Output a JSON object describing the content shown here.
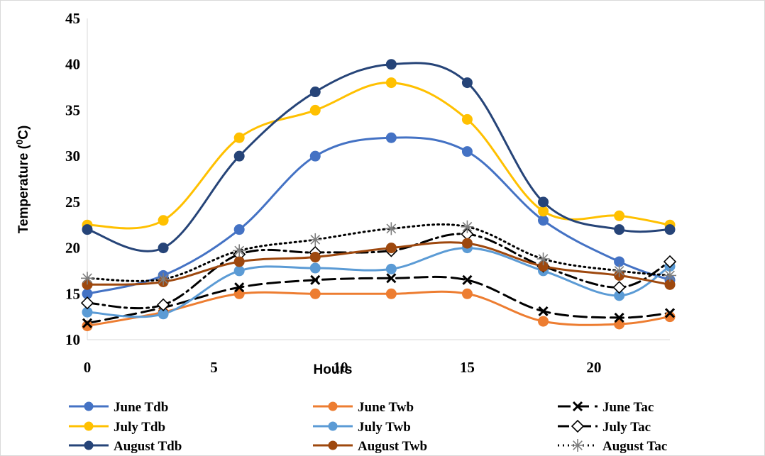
{
  "chart_data": {
    "type": "line",
    "xlabel": "Hours",
    "ylabel_main": "Temperature (",
    "ylabel_sup": "0",
    "ylabel_end": "C)",
    "xlim": [
      0,
      23
    ],
    "ylim": [
      10,
      45
    ],
    "x_ticks": [
      0,
      5,
      10,
      15,
      20
    ],
    "y_ticks": [
      10,
      15,
      20,
      25,
      30,
      35,
      40,
      45
    ],
    "x_tick_labels": [
      "0",
      "5",
      "10",
      "15",
      "20"
    ],
    "y_tick_labels": [
      "10",
      "15",
      "20",
      "25",
      "30",
      "35",
      "40",
      "45"
    ],
    "grid": false,
    "legend_position": "bottom",
    "x": [
      0,
      3,
      6,
      9,
      12,
      15,
      18,
      21,
      23
    ],
    "series": [
      {
        "name": "June Tdb",
        "values": [
          15,
          17,
          22,
          30,
          32,
          30.5,
          23,
          18.5,
          16.5
        ],
        "color": "#4472C4",
        "dash": "",
        "marker": "circle",
        "markerFill": "#4472C4",
        "width": 3
      },
      {
        "name": "June Twb",
        "values": [
          11.5,
          13,
          15,
          15,
          15,
          15,
          12,
          11.7,
          12.5
        ],
        "color": "#ED7D31",
        "dash": "",
        "marker": "circle",
        "markerFill": "#ED7D31",
        "width": 3
      },
      {
        "name": "June Tac",
        "values": [
          11.8,
          13.5,
          15.7,
          16.5,
          16.7,
          16.5,
          13.1,
          12.4,
          12.9
        ],
        "color": "#000000",
        "dash": "18 8",
        "marker": "x",
        "markerFill": "#000000",
        "width": 3
      },
      {
        "name": "July Tdb",
        "values": [
          22.5,
          23,
          32,
          35,
          38,
          34,
          24,
          23.5,
          22.5
        ],
        "color": "#FFC000",
        "dash": "",
        "marker": "circle",
        "markerFill": "#FFC000",
        "width": 3
      },
      {
        "name": "July Twb",
        "values": [
          13,
          12.8,
          17.5,
          17.8,
          17.7,
          20,
          17.5,
          14.8,
          18
        ],
        "color": "#5B9BD5",
        "dash": "",
        "marker": "circle",
        "markerFill": "#5B9BD5",
        "width": 3
      },
      {
        "name": "July Tac",
        "values": [
          14,
          13.8,
          19.3,
          19.5,
          19.7,
          21.5,
          18,
          15.7,
          18.5
        ],
        "color": "#000000",
        "dash": "16 6 3 6",
        "marker": "diamond",
        "markerFill": "#ffffff",
        "width": 3
      },
      {
        "name": "August Tdb",
        "values": [
          22,
          20,
          30,
          37,
          40,
          38,
          25,
          22,
          22
        ],
        "color": "#264478",
        "dash": "",
        "marker": "circle",
        "markerFill": "#264478",
        "width": 3
      },
      {
        "name": "August Twb",
        "values": [
          16,
          16.3,
          18.5,
          19,
          20,
          20.5,
          18,
          17,
          16
        ],
        "color": "#9E480E",
        "dash": "",
        "marker": "circle",
        "markerFill": "#9E480E",
        "width": 3
      },
      {
        "name": "August Tac",
        "values": [
          16.7,
          16.6,
          19.7,
          20.9,
          22.1,
          22.3,
          18.8,
          17.5,
          17
        ],
        "color": "#000000",
        "dash": "2 5",
        "marker": "asterisk",
        "markerFill": "#7f7f7f",
        "width": 3
      }
    ]
  }
}
